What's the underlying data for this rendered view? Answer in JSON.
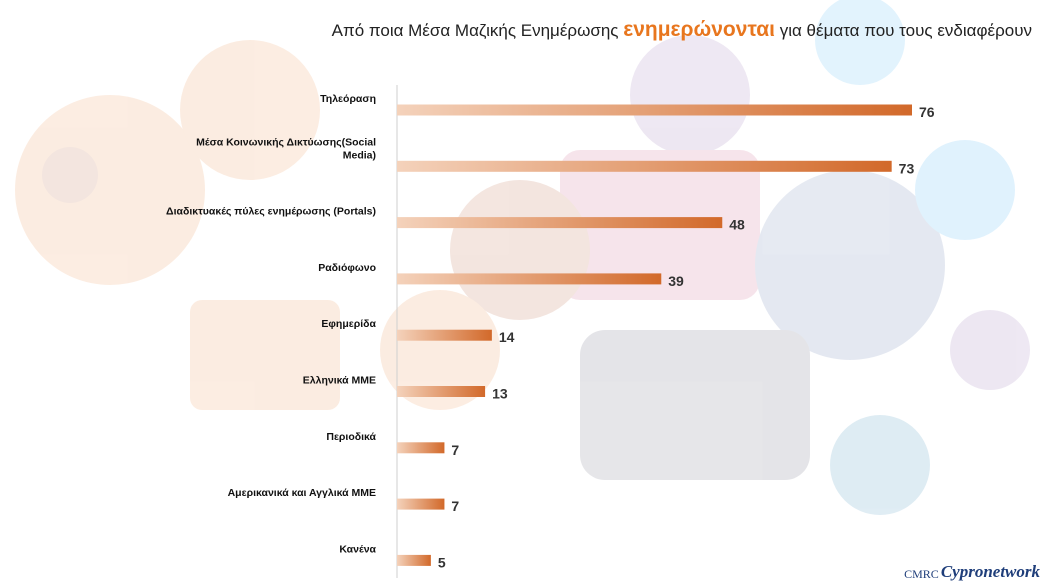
{
  "title": {
    "part1": "Από ποια Μέσα Μαζικής Ενημέρωσης ",
    "accent": "ενημερώνονται",
    "part2": " για θέματα που τους ενδιαφέρουν"
  },
  "logo": {
    "cmrc": "CMRC",
    "network": "Cypronetwork"
  },
  "colors": {
    "bar_end": "#d2692a",
    "bar_start": "#f4d2bb",
    "accent": "#e8761e"
  },
  "chart_data": {
    "type": "bar",
    "orientation": "horizontal",
    "title": "Από ποια Μέσα Μαζικής Ενημέρωσης ενημερώνονται για θέματα που τους ενδιαφέρουν",
    "categories": [
      [
        "Τηλεόραση"
      ],
      [
        "Μέσα Κοινωνικής Δικτύωσης(Social",
        "Media)"
      ],
      [
        "Διαδικτυακές πύλες ενημέρωσης (Portals)"
      ],
      [
        "Ραδιόφωνο"
      ],
      [
        "Εφημερίδα"
      ],
      [
        "Ελληνικά ΜΜΕ"
      ],
      [
        "Περιοδικά"
      ],
      [
        "Αμερικανικά και Αγγλικά ΜΜΕ"
      ],
      [
        "Κανένα"
      ]
    ],
    "values": [
      76,
      73,
      48,
      39,
      14,
      13,
      7,
      7,
      5
    ],
    "xlim": [
      0,
      80
    ],
    "grid": false,
    "legend": "none"
  }
}
